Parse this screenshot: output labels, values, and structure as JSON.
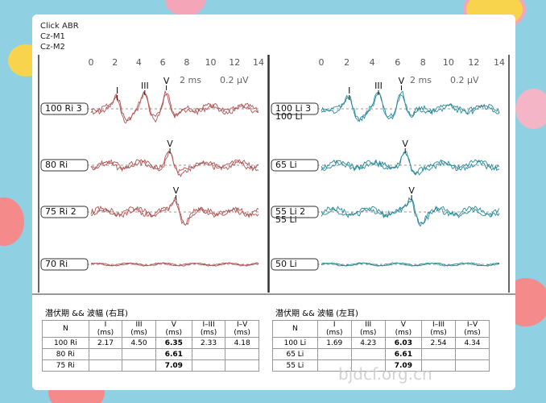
{
  "header": {
    "lines": [
      "Click ABR",
      "Cz-M1",
      "Cz-M2"
    ]
  },
  "panels": [
    {
      "axis_ticks": [
        "0",
        "2",
        "4",
        "6",
        "8",
        "10",
        "12",
        "14"
      ],
      "time_scale": "2 ms",
      "amp_scale": "0.2 µV",
      "traces": [
        {
          "labels": [
            "100 Ri 3"
          ],
          "peaks": [
            "I",
            "III",
            "V"
          ]
        },
        {
          "labels": [
            "80 Ri"
          ],
          "peaks": [
            "V"
          ]
        },
        {
          "labels": [
            "75 Ri 2"
          ],
          "peaks": [
            "V"
          ]
        },
        {
          "labels": [
            "70 Ri"
          ],
          "peaks": []
        }
      ]
    },
    {
      "axis_ticks": [
        "0",
        "2",
        "4",
        "6",
        "8",
        "10",
        "12",
        "14"
      ],
      "time_scale": "2 ms",
      "amp_scale": "0.2 µV",
      "traces": [
        {
          "labels": [
            "100 Li 3",
            "100 Li"
          ],
          "peaks": [
            "I",
            "III",
            "V"
          ]
        },
        {
          "labels": [
            "65 Li"
          ],
          "peaks": [
            "V"
          ]
        },
        {
          "labels": [
            "55 Li 2",
            "55 Li"
          ],
          "peaks": [
            "V"
          ]
        },
        {
          "labels": [
            "50 Li"
          ],
          "peaks": []
        }
      ]
    }
  ],
  "tables": [
    {
      "title": "潜伏期 && 波幅 (右耳)",
      "header": [
        {
          "name": "N"
        },
        {
          "name": "I",
          "unit": "(ms)"
        },
        {
          "name": "III",
          "unit": "(ms)"
        },
        {
          "name": "V",
          "unit": "(ms)"
        },
        {
          "name": "I–III",
          "unit": "(ms)"
        },
        {
          "name": "I–V",
          "unit": "(ms)"
        }
      ],
      "rows": [
        [
          "100 Ri",
          "2.17",
          "4.50",
          "6.35",
          "2.33",
          "4.18"
        ],
        [
          "80 Ri",
          null,
          null,
          "6.61",
          null,
          null
        ],
        [
          "75 Ri",
          null,
          null,
          "7.09",
          null,
          null
        ]
      ]
    },
    {
      "title": "潜伏期 && 波幅 (左耳)",
      "header": [
        {
          "name": "N"
        },
        {
          "name": "I",
          "unit": "(ms)"
        },
        {
          "name": "III",
          "unit": "(ms)"
        },
        {
          "name": "V",
          "unit": "(ms)"
        },
        {
          "name": "I–III",
          "unit": "(ms)"
        },
        {
          "name": "I–V",
          "unit": "(ms)"
        }
      ],
      "rows": [
        [
          "100 Li",
          "1.69",
          "4.23",
          "6.03",
          "2.54",
          "4.34"
        ],
        [
          "65 Li",
          null,
          null,
          "6.61",
          null,
          null
        ],
        [
          "55 Li",
          null,
          null,
          "7.09",
          null,
          null
        ]
      ]
    }
  ],
  "watermark": "bjdcf.org.cn"
}
